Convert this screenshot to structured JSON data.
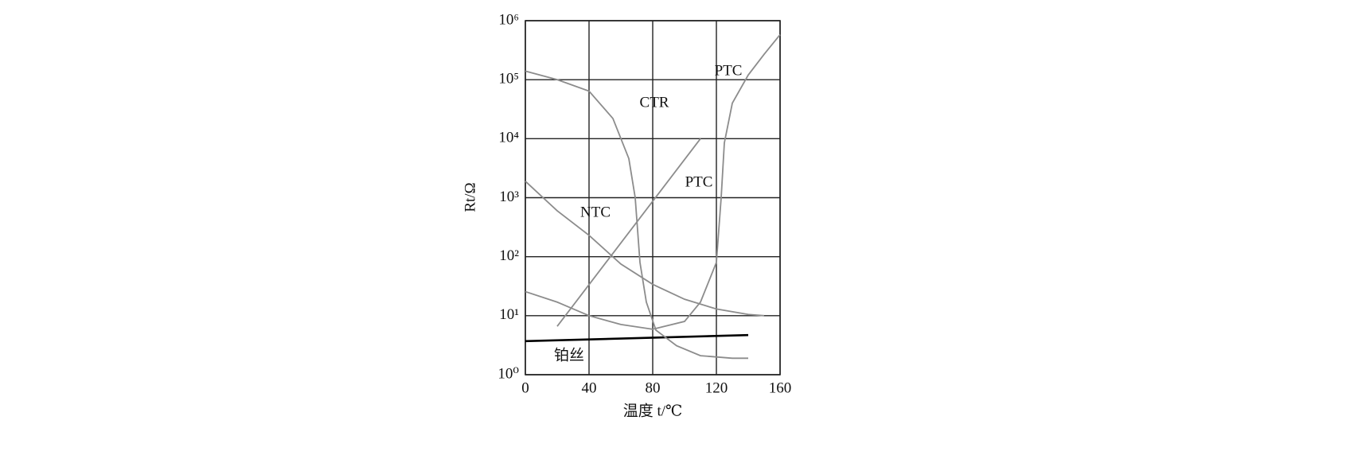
{
  "chart_data": {
    "type": "line",
    "log_y": true,
    "grid": true,
    "x_label": "温度 t/℃",
    "y_label": "Rt/Ω",
    "xlim": [
      0,
      160
    ],
    "xticks": [
      0,
      40,
      80,
      120,
      160
    ],
    "ylim": [
      1,
      1000000
    ],
    "yticks": [
      {
        "value": 1,
        "label": "10⁰"
      },
      {
        "value": 10,
        "label": "10¹"
      },
      {
        "value": 100,
        "label": "10²"
      },
      {
        "value": 1000,
        "label": "10³"
      },
      {
        "value": 10000,
        "label": "10⁴"
      },
      {
        "value": 100000,
        "label": "10⁵"
      },
      {
        "value": 1000000,
        "label": "10⁶"
      }
    ],
    "series": [
      {
        "name": "铂丝",
        "color": "#000000",
        "x": [
          0,
          140
        ],
        "values": [
          3.7,
          4.7
        ]
      },
      {
        "name": "NTC",
        "color": "#8c8c8c",
        "x": [
          0,
          20,
          40,
          60,
          80,
          100,
          120,
          140,
          150
        ],
        "values": [
          1900,
          600,
          230,
          75,
          34,
          19,
          13,
          10.5,
          10
        ]
      },
      {
        "name": "PTC",
        "color": "#8c8c8c",
        "x": [
          20,
          110
        ],
        "values": [
          6.6,
          10000
        ]
      },
      {
        "name": "CTR",
        "color": "#8c8c8c",
        "x": [
          0,
          20,
          40,
          55,
          65,
          69,
          72,
          76,
          82,
          95,
          110,
          130,
          140
        ],
        "values": [
          140000,
          100000,
          64000,
          22000,
          4600,
          1000,
          80,
          17,
          5.7,
          3.1,
          2.1,
          1.9,
          1.9
        ]
      },
      {
        "name": "PTC",
        "color": "#8c8c8c",
        "x": [
          0,
          20,
          40,
          60,
          80,
          100,
          110,
          120,
          123,
          125,
          130,
          140,
          150,
          160
        ],
        "values": [
          25.6,
          17,
          10,
          7.1,
          5.9,
          8,
          17,
          80,
          1000,
          8500,
          40000,
          120000,
          270000,
          580000
        ]
      }
    ]
  }
}
